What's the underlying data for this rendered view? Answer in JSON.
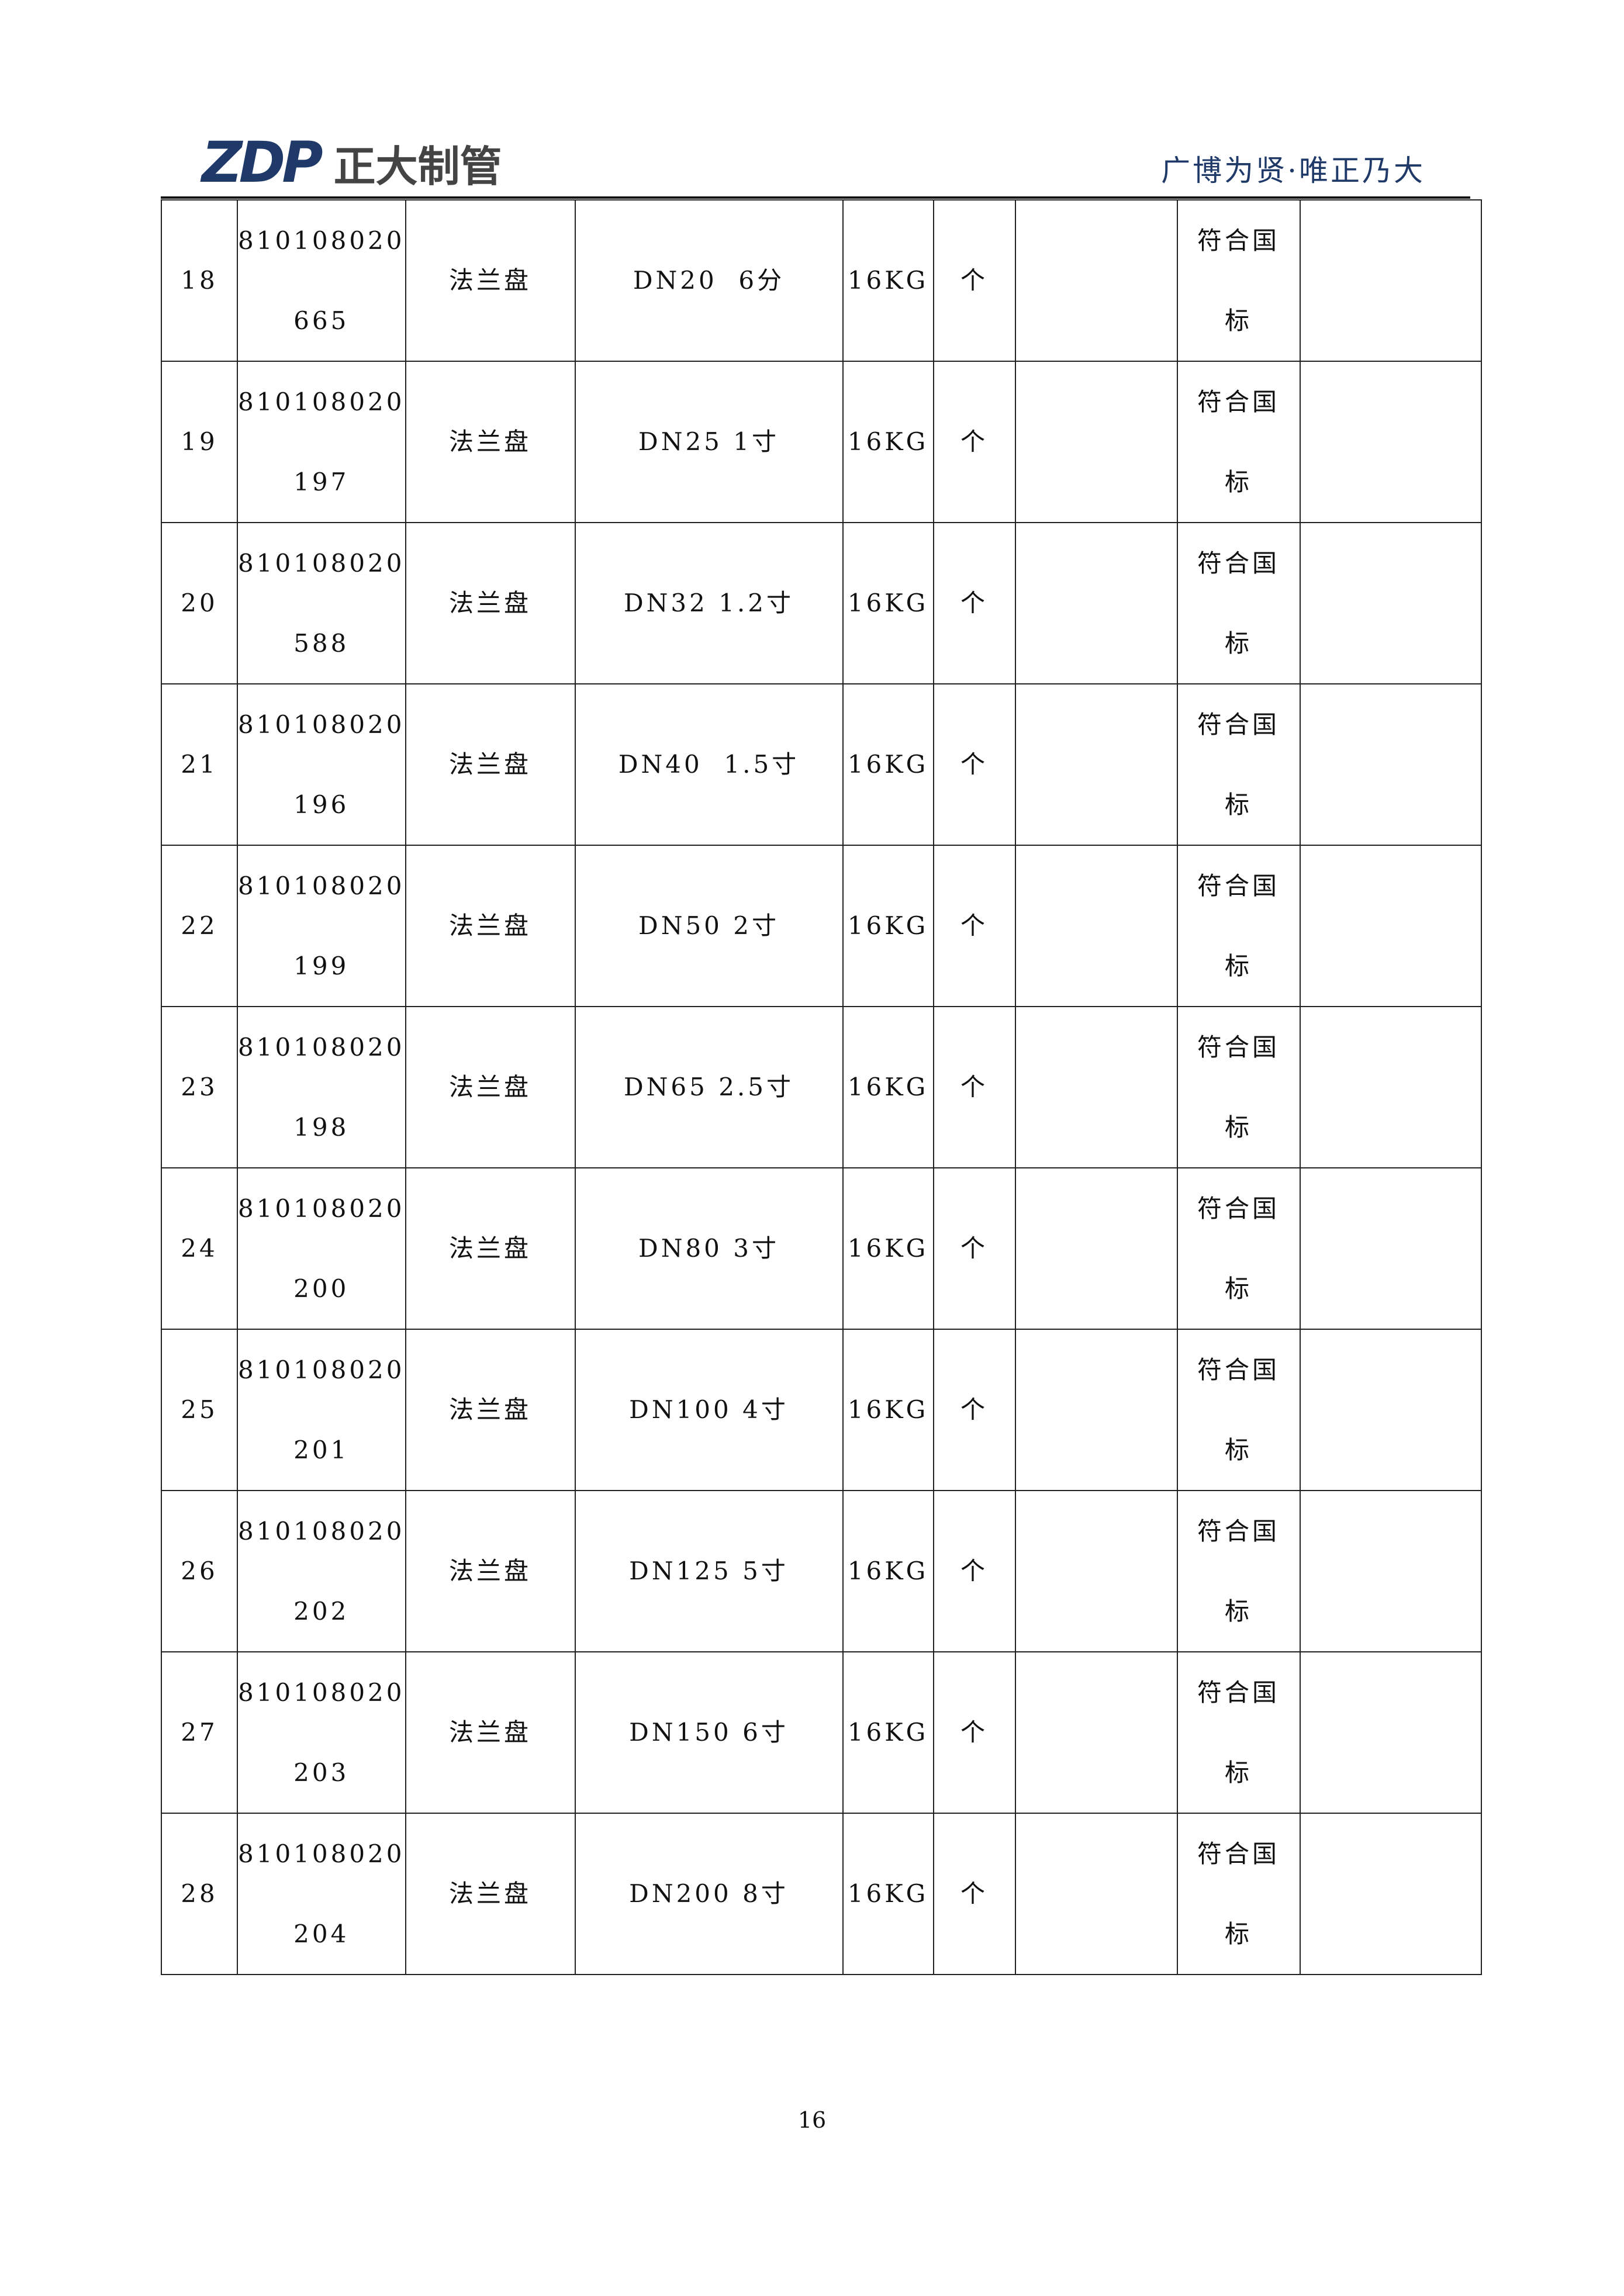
{
  "header": {
    "logo_mark": "ZDP",
    "logo_text": "正大制管",
    "slogan": "广博为贤·唯正乃大",
    "brand_color": "#1f3a68"
  },
  "rows": [
    {
      "no": "18",
      "code1": "810108020",
      "code2": "665",
      "name": "法兰盘",
      "spec": "DN20  6分",
      "pressure": "16KG",
      "unit": "个",
      "qty": "",
      "std1": "符合国",
      "std2": "标",
      "remark": ""
    },
    {
      "no": "19",
      "code1": "810108020",
      "code2": "197",
      "name": "法兰盘",
      "spec": "DN25 1寸",
      "pressure": "16KG",
      "unit": "个",
      "qty": "",
      "std1": "符合国",
      "std2": "标",
      "remark": ""
    },
    {
      "no": "20",
      "code1": "810108020",
      "code2": "588",
      "name": "法兰盘",
      "spec": "DN32 1.2寸",
      "pressure": "16KG",
      "unit": "个",
      "qty": "",
      "std1": "符合国",
      "std2": "标",
      "remark": ""
    },
    {
      "no": "21",
      "code1": "810108020",
      "code2": "196",
      "name": "法兰盘",
      "spec": "DN40  1.5寸",
      "pressure": "16KG",
      "unit": "个",
      "qty": "",
      "std1": "符合国",
      "std2": "标",
      "remark": ""
    },
    {
      "no": "22",
      "code1": "810108020",
      "code2": "199",
      "name": "法兰盘",
      "spec": "DN50 2寸",
      "pressure": "16KG",
      "unit": "个",
      "qty": "",
      "std1": "符合国",
      "std2": "标",
      "remark": ""
    },
    {
      "no": "23",
      "code1": "810108020",
      "code2": "198",
      "name": "法兰盘",
      "spec": "DN65 2.5寸",
      "pressure": "16KG",
      "unit": "个",
      "qty": "",
      "std1": "符合国",
      "std2": "标",
      "remark": ""
    },
    {
      "no": "24",
      "code1": "810108020",
      "code2": "200",
      "name": "法兰盘",
      "spec": "DN80 3寸",
      "pressure": "16KG",
      "unit": "个",
      "qty": "",
      "std1": "符合国",
      "std2": "标",
      "remark": ""
    },
    {
      "no": "25",
      "code1": "810108020",
      "code2": "201",
      "name": "法兰盘",
      "spec": "DN100 4寸",
      "pressure": "16KG",
      "unit": "个",
      "qty": "",
      "std1": "符合国",
      "std2": "标",
      "remark": ""
    },
    {
      "no": "26",
      "code1": "810108020",
      "code2": "202",
      "name": "法兰盘",
      "spec": "DN125 5寸",
      "pressure": "16KG",
      "unit": "个",
      "qty": "",
      "std1": "符合国",
      "std2": "标",
      "remark": ""
    },
    {
      "no": "27",
      "code1": "810108020",
      "code2": "203",
      "name": "法兰盘",
      "spec": "DN150 6寸",
      "pressure": "16KG",
      "unit": "个",
      "qty": "",
      "std1": "符合国",
      "std2": "标",
      "remark": ""
    },
    {
      "no": "28",
      "code1": "810108020",
      "code2": "204",
      "name": "法兰盘",
      "spec": "DN200 8寸",
      "pressure": "16KG",
      "unit": "个",
      "qty": "",
      "std1": "符合国",
      "std2": "标",
      "remark": ""
    }
  ],
  "footer": {
    "page_number": "16"
  }
}
